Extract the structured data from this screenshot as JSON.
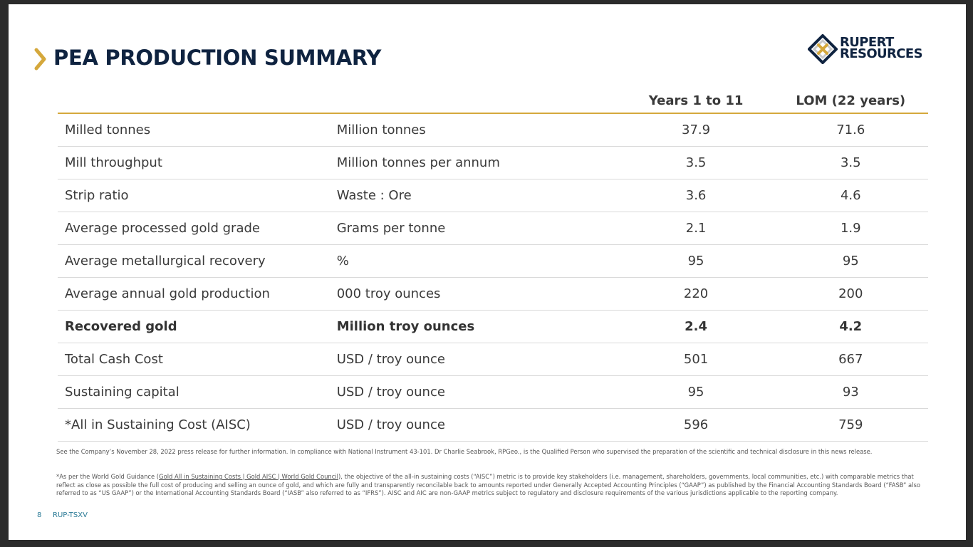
{
  "slide": {
    "title": "PEA PRODUCTION SUMMARY",
    "logo": {
      "line1": "RUPERT",
      "line2": "RESOURCES"
    },
    "colors": {
      "navy": "#0f2340",
      "gold": "#d5a83c",
      "teal": "#2a7a96"
    },
    "icons": {
      "title_marker": "chevron-right-icon",
      "logo_mark": "rupert-logo-icon"
    }
  },
  "table": {
    "headers": [
      "",
      "",
      "Years 1 to 11",
      "LOM (22 years)"
    ],
    "rows": [
      {
        "label": "Milled tonnes",
        "unit": "Million tonnes",
        "y1_11": "37.9",
        "lom": "71.6",
        "bold": false
      },
      {
        "label": "Mill throughput",
        "unit": "Million tonnes per annum",
        "y1_11": "3.5",
        "lom": "3.5",
        "bold": false
      },
      {
        "label": "Strip ratio",
        "unit": "Waste : Ore",
        "y1_11": "3.6",
        "lom": "4.6",
        "bold": false
      },
      {
        "label": "Average processed gold grade",
        "unit": "Grams per tonne",
        "y1_11": "2.1",
        "lom": "1.9",
        "bold": false
      },
      {
        "label": "Average metallurgical recovery",
        "unit": "%",
        "y1_11": "95",
        "lom": "95",
        "bold": false
      },
      {
        "label": "Average annual gold production",
        "unit": "000 troy ounces",
        "y1_11": "220",
        "lom": "200",
        "bold": false
      },
      {
        "label": "Recovered gold",
        "unit": "Million troy ounces",
        "y1_11": "2.4",
        "lom": "4.2",
        "bold": true
      },
      {
        "label": "Total Cash Cost",
        "unit": "USD / troy ounce",
        "y1_11": "501",
        "lom": "667",
        "bold": false
      },
      {
        "label": "Sustaining capital",
        "unit": "USD / troy ounce",
        "y1_11": "95",
        "lom": "93",
        "bold": false
      },
      {
        "label": "*All in Sustaining Cost (AISC)",
        "unit": "USD / troy ounce",
        "y1_11": "596",
        "lom": "759",
        "bold": false
      }
    ]
  },
  "notes": {
    "note1": "See the Company’s November 28, 2022 press release for further information. In compliance with National Instrument 43-101. Dr Charlie Seabrook, RPGeo., is the Qualified Person who supervised the preparation of the scientific and technical disclosure in this news release.",
    "note2_prefix": "*As per the World Gold Guidance (",
    "note2_link": "Gold All in Sustaining Costs | Gold AISC | World Gold Council",
    "note2_suffix": "), the objective of the all-in sustaining costs (“AISC”) metric is to provide key stakeholders (i.e. management, shareholders, governments, local communities, etc.) with comparable metrics that reflect as close as possible the full cost of producing and selling an ounce of gold, and which are fully and transparently reconcilable back to amounts reported under Generally Accepted Accounting Principles (“GAAP”) as published by the Financial Accounting Standards Board (“FASB” also referred to as “US GAAP”) or the International Accounting Standards Board (“IASB” also referred to as “IFRS”). AISC and AIC are non-GAAP metrics subject to regulatory and disclosure requirements of the various jurisdictions applicable to the reporting company."
  },
  "footer": {
    "page_number": "8",
    "ticker": "RUP-TSXV"
  }
}
